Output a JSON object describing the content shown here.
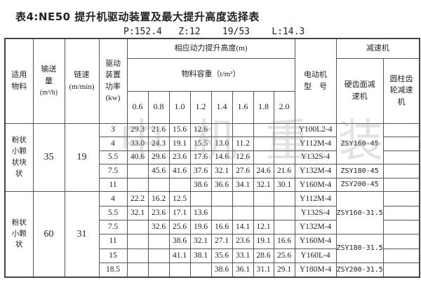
{
  "title": "表4:NE50 提升机驱动装置及最大提升高度选择表",
  "params": "P:152.4   Z:12    19/53    L:14.3",
  "watermark": "中机重装",
  "headers": {
    "material": "适用物料",
    "capacity": "输送量",
    "capacity_unit": "(m³/h)",
    "speed": "链速",
    "speed_unit": "(m/min)",
    "power": "驱动装置功率",
    "power_unit": "(kw)",
    "height": "相应动力提升高度(m)",
    "density": "物料容重（t/m³）",
    "densities": [
      "0.6",
      "0.8",
      "1.0",
      "1.2",
      "1.4",
      "1.6",
      "1.8",
      "2.0"
    ],
    "motor": "电动机型　号",
    "reducer": "减速机",
    "hard_gear": "硬齿面减速机",
    "cyl_gear": "圆柱齿轮减速机"
  },
  "sections": [
    {
      "material": "粉状小颗状块状",
      "capacity": "35",
      "speed": "19",
      "rows": [
        {
          "power": "3",
          "h": [
            "29.3",
            "21.6",
            "15.6",
            "12.6",
            "",
            "",
            "",
            ""
          ],
          "motor": "Y100L2-4"
        },
        {
          "power": "4",
          "h": [
            "33.0",
            "24.3",
            "19.1",
            "15.5",
            "13.0",
            "11.2",
            "",
            ""
          ],
          "motor": "Y112M-4"
        },
        {
          "power": "5.5",
          "h": [
            "40.6",
            "29.6",
            "23.6",
            "17.6",
            "14.6",
            "12.6",
            "",
            ""
          ],
          "motor": "Y132S-4"
        },
        {
          "power": "7.5",
          "h": [
            "",
            "45.6",
            "41.6",
            "37.6",
            "32.1",
            "27.6",
            "24.6",
            "21.6"
          ],
          "motor": "Y132M-4"
        },
        {
          "power": "11",
          "h": [
            "",
            "",
            "",
            "38.6",
            "36.6",
            "34.1",
            "32.1",
            "30.1"
          ],
          "motor": "Y160M-4"
        }
      ],
      "reducers": [
        {
          "label": "ZSY160-45",
          "span": 3
        },
        {
          "label": "ZSY180-45",
          "span": 1
        },
        {
          "label": "ZSY200-45",
          "span": 1
        }
      ]
    },
    {
      "material": "粉状小颗状",
      "capacity": "60",
      "speed": "31",
      "rows": [
        {
          "power": "4",
          "h": [
            "22.2",
            "16.2",
            "12.5",
            "",
            "",
            "",
            "",
            ""
          ],
          "motor": "Y112M-4"
        },
        {
          "power": "5.5",
          "h": [
            "32.1",
            "23.6",
            "17.1",
            "13.6",
            "",
            "",
            "",
            ""
          ],
          "motor": "Y132S-4"
        },
        {
          "power": "7.5",
          "h": [
            "",
            "32.6",
            "25.6",
            "19.6",
            "16.6",
            "14.1",
            "12.1",
            ""
          ],
          "motor": "Y132M-4"
        },
        {
          "power": "11",
          "h": [
            "",
            "",
            "38.6",
            "32.1",
            "27.1",
            "23.6",
            "19.1",
            "16.6"
          ],
          "motor": "Y160M-4"
        },
        {
          "power": "15",
          "h": [
            "",
            "",
            "41.1",
            "38.1",
            "35.6",
            "33.1",
            "28.6",
            "25.6"
          ],
          "motor": "Y160L-4"
        },
        {
          "power": "18.5",
          "h": [
            "",
            "",
            "",
            "",
            "38.6",
            "36.1",
            "31.1",
            "29.1"
          ],
          "motor": "Y180M-4"
        }
      ],
      "reducers": [
        {
          "label": "ZSY160-31.5",
          "span": 3
        },
        {
          "label": "ZSY180-31.5",
          "span": 2
        },
        {
          "label": "ZSY200-31.5",
          "span": 1
        }
      ]
    }
  ]
}
